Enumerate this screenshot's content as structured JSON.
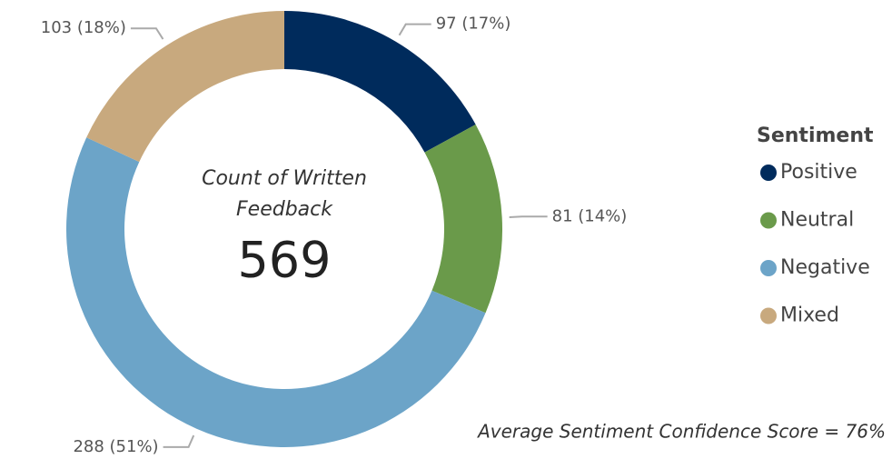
{
  "chart_data": {
    "type": "donut",
    "categories": [
      "Positive",
      "Neutral",
      "Negative",
      "Mixed"
    ],
    "values": [
      97,
      81,
      288,
      103
    ],
    "value_labels": [
      "97 (17%)",
      "81 (14%)",
      "288 (51%)",
      "103 (18%)"
    ],
    "colors": [
      "#002b5c",
      "#6a9a4a",
      "#6ca4c8",
      "#c8a97e"
    ],
    "center_label": "Count of Written Feedback",
    "center_value": 569,
    "legend_title": "Sentiment",
    "legend": "right",
    "footnote": "Average Sentiment Confidence Score = 76%"
  }
}
